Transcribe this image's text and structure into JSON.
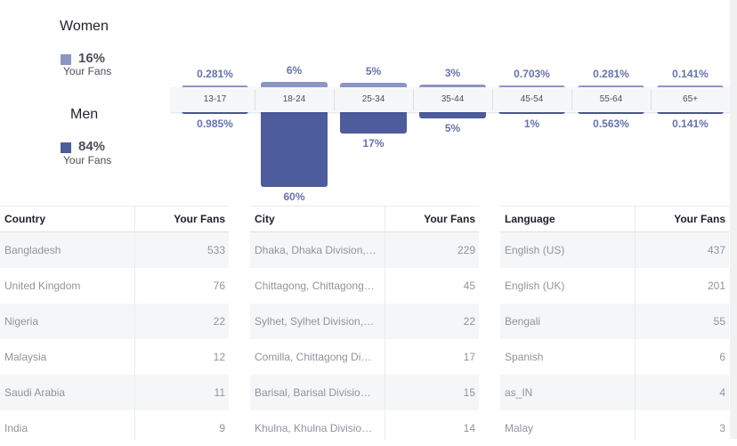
{
  "legend": {
    "women_title": "Women",
    "women_pct": "16%",
    "women_sub": "Your Fans",
    "men_title": "Men",
    "men_pct": "84%",
    "men_sub": "Your Fans"
  },
  "colors": {
    "women": "#8b96c4",
    "men": "#4c5c9c",
    "label": "#6773ad"
  },
  "chart_data": {
    "type": "bar",
    "categories": [
      "13-17",
      "18-24",
      "25-34",
      "35-44",
      "45-54",
      "55-64",
      "65+"
    ],
    "series": [
      {
        "name": "Women",
        "values": [
          0.281,
          6,
          5,
          3,
          0.703,
          0.281,
          0.141
        ],
        "labels": [
          "0.281%",
          "6%",
          "5%",
          "3%",
          "0.703%",
          "0.281%",
          "0.141%"
        ]
      },
      {
        "name": "Men",
        "values": [
          0.985,
          60,
          17,
          5,
          1,
          0.563,
          0.141
        ],
        "labels": [
          "0.985%",
          "60%",
          "17%",
          "5%",
          "1%",
          "0.563%",
          "0.141%"
        ]
      }
    ],
    "ylim": [
      0,
      60
    ],
    "legend": "left",
    "grid": false
  },
  "tables": [
    {
      "header": [
        "Country",
        "Your Fans"
      ],
      "rows": [
        [
          "Bangladesh",
          "533"
        ],
        [
          "United Kingdom",
          "76"
        ],
        [
          "Nigeria",
          "22"
        ],
        [
          "Malaysia",
          "12"
        ],
        [
          "Saudi Arabia",
          "11"
        ],
        [
          "India",
          "9"
        ]
      ]
    },
    {
      "header": [
        "City",
        "Your Fans"
      ],
      "rows": [
        [
          "Dhaka, Dhaka Division,…",
          "229"
        ],
        [
          "Chittagong, Chittagong…",
          "45"
        ],
        [
          "Sylhet, Sylhet Division,…",
          "22"
        ],
        [
          "Comilla, Chittagong Di…",
          "17"
        ],
        [
          "Barisal, Barisal Divisio…",
          "15"
        ],
        [
          "Khulna, Khulna Divisio…",
          "14"
        ]
      ]
    },
    {
      "header": [
        "Language",
        "Your Fans"
      ],
      "rows": [
        [
          "English (US)",
          "437"
        ],
        [
          "English (UK)",
          "201"
        ],
        [
          "Bengali",
          "55"
        ],
        [
          "Spanish",
          "6"
        ],
        [
          "as_IN",
          "4"
        ],
        [
          "Malay",
          "3"
        ]
      ]
    }
  ]
}
